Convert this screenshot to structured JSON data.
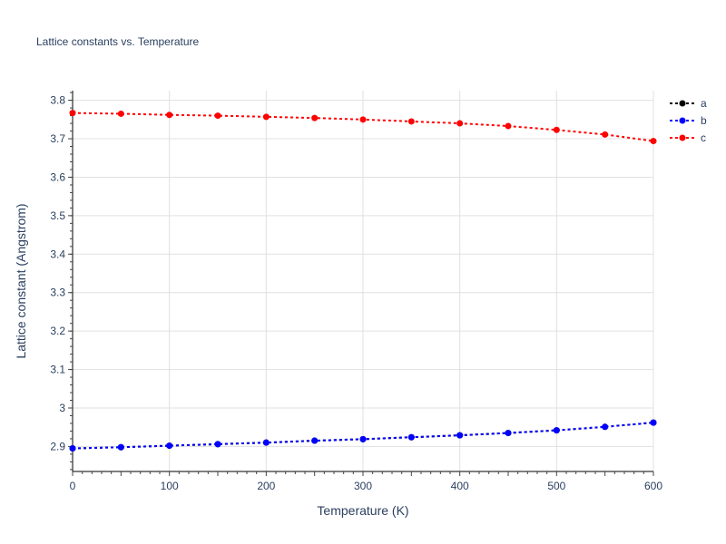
{
  "chart_data": {
    "type": "line",
    "title": "Lattice constants vs. Temperature",
    "xlabel": "Temperature (K)",
    "ylabel": "Lattice constant (Angstrom)",
    "xlim": [
      0,
      600
    ],
    "ylim": [
      2.835,
      3.825
    ],
    "xticks": [
      0,
      100,
      200,
      300,
      400,
      500,
      600
    ],
    "xtick_labels": [
      "0",
      "100",
      "200",
      "300",
      "400",
      "500",
      "600"
    ],
    "yticks": [
      2.9,
      3.0,
      3.1,
      3.2,
      3.3,
      3.4,
      3.5,
      3.6,
      3.7,
      3.8
    ],
    "ytick_labels": [
      "2.9",
      "3",
      "3.1",
      "3.2",
      "3.3",
      "3.4",
      "3.5",
      "3.6",
      "3.7",
      "3.8"
    ],
    "grid": true,
    "legend_position": "top-right",
    "x": [
      0,
      50,
      100,
      150,
      200,
      250,
      300,
      350,
      400,
      450,
      500,
      550,
      600
    ],
    "series": [
      {
        "name": "a",
        "color": "#000000",
        "line_style": "dotted",
        "values": [
          2.895,
          2.898,
          2.902,
          2.906,
          2.91,
          2.915,
          2.919,
          2.924,
          2.929,
          2.935,
          2.942,
          2.951,
          2.962
        ]
      },
      {
        "name": "b",
        "color": "#0000ff",
        "line_style": "dotted",
        "values": [
          2.895,
          2.898,
          2.902,
          2.906,
          2.91,
          2.915,
          2.919,
          2.924,
          2.929,
          2.935,
          2.942,
          2.951,
          2.962
        ]
      },
      {
        "name": "c",
        "color": "#ff0000",
        "line_style": "dotted",
        "values": [
          3.767,
          3.765,
          3.762,
          3.76,
          3.757,
          3.754,
          3.75,
          3.745,
          3.74,
          3.733,
          3.723,
          3.711,
          3.694
        ]
      }
    ]
  }
}
